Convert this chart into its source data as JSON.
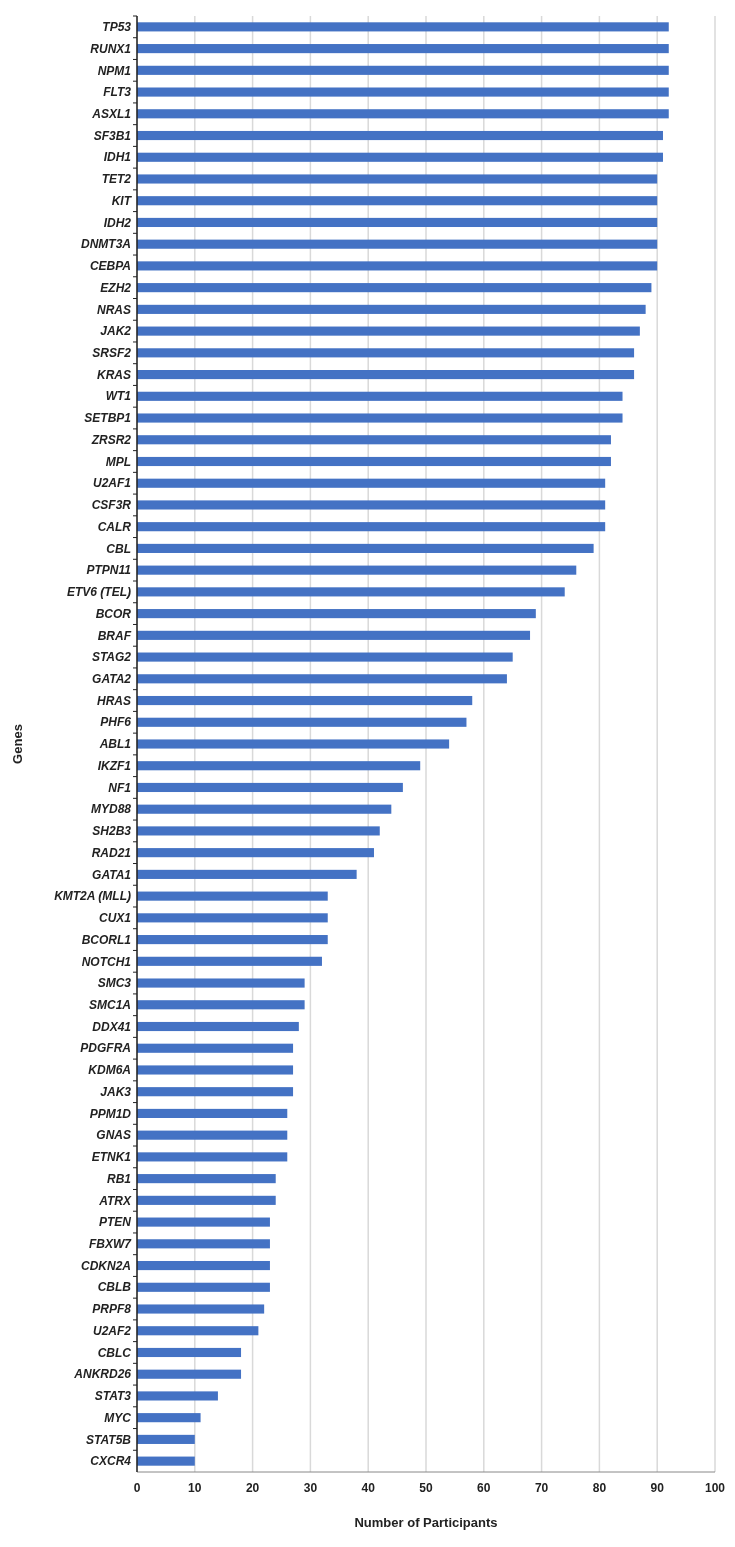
{
  "chart_data": {
    "type": "bar",
    "orientation": "horizontal",
    "xlabel": "Number of Participants",
    "ylabel": "Genes",
    "color": "#4472c4",
    "categories": [
      "TP53",
      "RUNX1",
      "NPM1",
      "FLT3",
      "ASXL1",
      "SF3B1",
      "IDH1",
      "TET2",
      "KIT",
      "IDH2",
      "DNMT3A",
      "CEBPA",
      "EZH2",
      "NRAS",
      "JAK2",
      "SRSF2",
      "KRAS",
      "WT1",
      "SETBP1",
      "ZRSR2",
      "MPL",
      "U2AF1",
      "CSF3R",
      "CALR",
      "CBL",
      "PTPN11",
      "ETV6 (TEL)",
      "BCOR",
      "BRAF",
      "STAG2",
      "GATA2",
      "HRAS",
      "PHF6",
      "ABL1",
      "IKZF1",
      "NF1",
      "MYD88",
      "SH2B3",
      "RAD21",
      "GATA1",
      "KMT2A (MLL)",
      "CUX1",
      "BCORL1",
      "NOTCH1",
      "SMC3",
      "SMC1A",
      "DDX41",
      "PDGFRA",
      "KDM6A",
      "JAK3",
      "PPM1D",
      "GNAS",
      "ETNK1",
      "RB1",
      "ATRX",
      "PTEN",
      "FBXW7",
      "CDKN2A",
      "CBLB",
      "PRPF8",
      "U2AF2",
      "CBLC",
      "ANKRD26",
      "STAT3",
      "MYC",
      "STAT5B",
      "CXCR4"
    ],
    "values": [
      92,
      92,
      92,
      92,
      92,
      91,
      91,
      90,
      90,
      90,
      90,
      90,
      89,
      88,
      87,
      86,
      86,
      84,
      84,
      82,
      82,
      81,
      81,
      81,
      79,
      76,
      74,
      69,
      68,
      65,
      64,
      58,
      57,
      54,
      49,
      46,
      44,
      42,
      41,
      38,
      33,
      33,
      33,
      32,
      29,
      29,
      28,
      27,
      27,
      27,
      26,
      26,
      26,
      24,
      24,
      23,
      23,
      23,
      23,
      22,
      21,
      18,
      18,
      14,
      11,
      10,
      10
    ],
    "xlim": [
      0,
      100
    ],
    "xticks": [
      0,
      10,
      20,
      30,
      40,
      50,
      60,
      70,
      80,
      90,
      100
    ],
    "grid": "x"
  }
}
